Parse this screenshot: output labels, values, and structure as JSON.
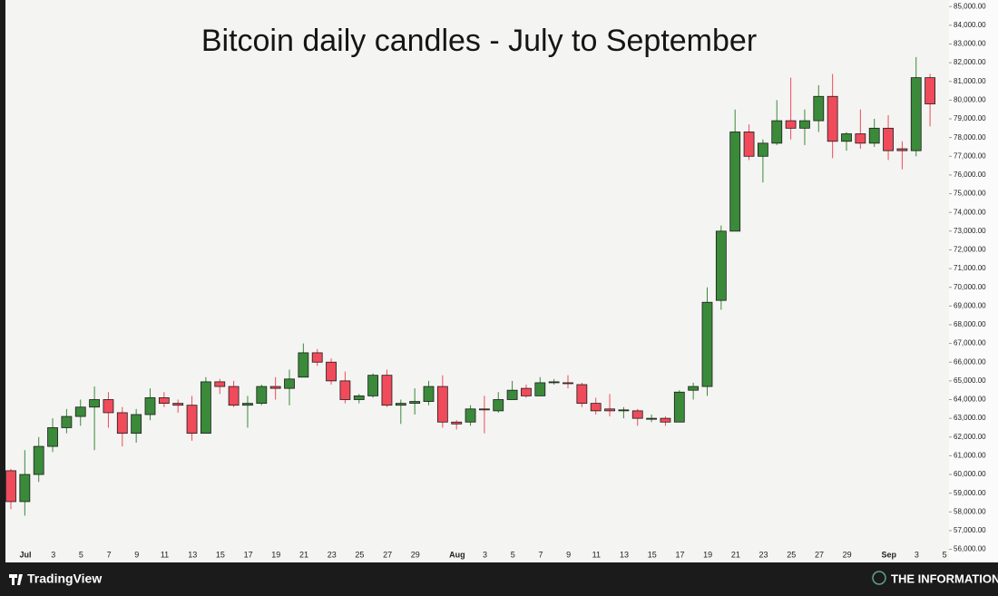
{
  "chart_data": {
    "type": "candlestick",
    "title": "Bitcoin daily candles - July to September",
    "categories": [
      null,
      "Jul",
      null,
      "3",
      null,
      "5",
      null,
      "7",
      null,
      "9",
      null,
      "11",
      null,
      "13",
      null,
      "15",
      null,
      "17",
      null,
      "19",
      null,
      "21",
      null,
      "23",
      null,
      "25",
      null,
      "27",
      null,
      "29",
      null,
      null,
      "Aug",
      null,
      "3",
      null,
      "5",
      null,
      "7",
      null,
      "9",
      null,
      "11",
      null,
      "13",
      null,
      "15",
      null,
      "17",
      null,
      "19",
      null,
      "21",
      null,
      "23",
      null,
      "25",
      null,
      "27",
      null,
      "29",
      null,
      null,
      "Sep",
      null,
      "3",
      null,
      "5"
    ],
    "open": [
      60200,
      58550,
      60000,
      61500,
      62500,
      63100,
      63600,
      64000,
      63300,
      62200,
      63200,
      64100,
      63800,
      63700,
      62200,
      64950,
      64700,
      63700,
      63800,
      64700,
      64600,
      65200,
      66500,
      66000,
      65000,
      64000,
      64200,
      65300,
      63700,
      63800,
      63900,
      64700,
      62800,
      62800,
      63500,
      63400,
      64000,
      64600,
      64200,
      64900,
      64900,
      64800,
      63800,
      63500,
      63400,
      63400,
      62950,
      63000,
      62800,
      64500,
      64700,
      69300,
      73000,
      78300,
      77000,
      77700,
      78900,
      78500,
      78900,
      80200,
      77800,
      78200,
      77700,
      78500,
      77400,
      77300,
      81200,
      null
    ],
    "high": [
      60300,
      61300,
      62000,
      63000,
      63500,
      64000,
      64700,
      64400,
      63600,
      63500,
      64600,
      64400,
      64000,
      64200,
      65200,
      65100,
      65000,
      64200,
      64800,
      65200,
      65600,
      67000,
      66700,
      66200,
      65500,
      64300,
      65400,
      65600,
      64000,
      64600,
      65000,
      65300,
      62900,
      63700,
      64200,
      64400,
      65000,
      64800,
      65200,
      65100,
      65300,
      64900,
      64100,
      64300,
      63600,
      63500,
      63200,
      63100,
      64500,
      64900,
      70000,
      73300,
      79500,
      78700,
      77900,
      80000,
      81200,
      79500,
      80800,
      81400,
      78300,
      79500,
      79000,
      79200,
      77800,
      82300,
      81400,
      null
    ],
    "low": [
      58150,
      57800,
      59600,
      61200,
      62200,
      62600,
      61300,
      62500,
      61500,
      61700,
      62900,
      63600,
      63300,
      61800,
      62200,
      64300,
      63600,
      62500,
      63700,
      64000,
      63700,
      65200,
      65800,
      64800,
      63800,
      63800,
      64100,
      63600,
      62700,
      63200,
      63700,
      62500,
      62400,
      62600,
      62200,
      63300,
      64000,
      64100,
      64200,
      64800,
      64600,
      63600,
      63200,
      63100,
      63000,
      62600,
      62800,
      62600,
      62800,
      64000,
      64200,
      68800,
      73000,
      76800,
      75600,
      77600,
      77900,
      77600,
      78300,
      76900,
      77300,
      77400,
      77500,
      76800,
      76300,
      77000,
      78600,
      null
    ],
    "close": [
      58550,
      60000,
      61500,
      62500,
      63100,
      63600,
      64000,
      63300,
      62200,
      63200,
      64100,
      63800,
      63700,
      62200,
      64950,
      64700,
      63700,
      63800,
      64700,
      64600,
      65100,
      66500,
      66000,
      65000,
      64000,
      64200,
      65300,
      63700,
      63800,
      63900,
      64700,
      62800,
      62700,
      63500,
      63450,
      64000,
      64500,
      64200,
      64900,
      64950,
      64850,
      63800,
      63400,
      63400,
      63450,
      63000,
      63000,
      62800,
      64400,
      64700,
      69200,
      73000,
      78300,
      77000,
      77700,
      78900,
      78500,
      78900,
      80200,
      77800,
      78200,
      77700,
      78500,
      77300,
      77300,
      81200,
      79800,
      null
    ],
    "up_color": "#3a8a3a",
    "down_color": "#f04b5b",
    "ylim": [
      55300,
      85350
    ],
    "yticks": [
      {
        "value": 85000,
        "label": "85,000.00"
      },
      {
        "value": 84000,
        "label": "84,000.00"
      },
      {
        "value": 83000,
        "label": "83,000.00"
      },
      {
        "value": 82000,
        "label": "82,000.00"
      },
      {
        "value": 81000,
        "label": "81,000.00"
      },
      {
        "value": 80000,
        "label": "80,000.00"
      },
      {
        "value": 79000,
        "label": "79,000.00"
      },
      {
        "value": 78000,
        "label": "78,000.00"
      },
      {
        "value": 77000,
        "label": "77,000.00"
      },
      {
        "value": 76000,
        "label": "76,000.00"
      },
      {
        "value": 75000,
        "label": "75,000.00"
      },
      {
        "value": 74000,
        "label": "74,000.00"
      },
      {
        "value": 73000,
        "label": "73,000.00"
      },
      {
        "value": 72000,
        "label": "72,000.00"
      },
      {
        "value": 71000,
        "label": "71,000.00"
      },
      {
        "value": 70000,
        "label": "70,000.00"
      },
      {
        "value": 69000,
        "label": "69,000.00"
      },
      {
        "value": 68000,
        "label": "68,000.00"
      },
      {
        "value": 67000,
        "label": "67,000.00"
      },
      {
        "value": 66000,
        "label": "66,000.00"
      },
      {
        "value": 65000,
        "label": "65,000.00"
      },
      {
        "value": 64000,
        "label": "64,000.00"
      },
      {
        "value": 63000,
        "label": "63,000.00"
      },
      {
        "value": 62000,
        "label": "62,000.00"
      },
      {
        "value": 61000,
        "label": "61,000.00"
      },
      {
        "value": 60000,
        "label": "60,000.00"
      },
      {
        "value": 59000,
        "label": "59,000.00"
      },
      {
        "value": 58000,
        "label": "58,000.00"
      },
      {
        "value": 57000,
        "label": "57,000.00"
      },
      {
        "value": 56000,
        "label": "56,000.00"
      }
    ],
    "grid": false
  },
  "footer": {
    "brand": "TradingView",
    "publisher": "THE INFORMATIONIST"
  }
}
